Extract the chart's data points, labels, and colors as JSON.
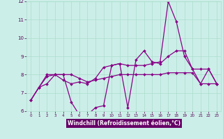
{
  "xlabel": "Windchill (Refroidissement éolien,°C)",
  "background_color": "#cceee8",
  "line_color": "#880088",
  "x_data": [
    0,
    1,
    2,
    3,
    4,
    5,
    6,
    7,
    8,
    9,
    10,
    11,
    12,
    13,
    14,
    15,
    16,
    17,
    18,
    19,
    20,
    21,
    22,
    23
  ],
  "line1": [
    6.6,
    7.3,
    7.5,
    8.0,
    8.0,
    6.5,
    5.8,
    5.8,
    6.2,
    6.3,
    8.5,
    8.6,
    6.2,
    8.8,
    9.3,
    8.7,
    8.6,
    9.0,
    9.3,
    9.3,
    8.3,
    7.5,
    8.3,
    7.5
  ],
  "line2": [
    6.6,
    7.3,
    7.9,
    8.0,
    7.7,
    7.5,
    7.6,
    7.5,
    7.8,
    8.4,
    8.5,
    8.6,
    8.5,
    8.5,
    8.5,
    8.6,
    8.7,
    12.0,
    10.9,
    9.0,
    8.3,
    8.3,
    8.3,
    7.5
  ],
  "line3": [
    6.6,
    7.3,
    8.0,
    8.0,
    8.0,
    8.0,
    7.8,
    7.6,
    7.7,
    7.8,
    7.9,
    8.0,
    8.0,
    8.0,
    8.0,
    8.0,
    8.0,
    8.1,
    8.1,
    8.1,
    8.1,
    7.5,
    7.5,
    7.5
  ],
  "ylim": [
    6,
    12
  ],
  "xlim": [
    -0.5,
    23.5
  ],
  "yticks": [
    6,
    7,
    8,
    9,
    10,
    11,
    12
  ],
  "xticks": [
    0,
    1,
    2,
    3,
    4,
    5,
    6,
    7,
    8,
    9,
    10,
    11,
    12,
    13,
    14,
    15,
    16,
    17,
    18,
    19,
    20,
    21,
    22,
    23
  ],
  "grid_color": "#aaddcc",
  "xlabel_bg": "#660066",
  "xlabel_fg": "#ffffff",
  "tick_color": "#550055"
}
